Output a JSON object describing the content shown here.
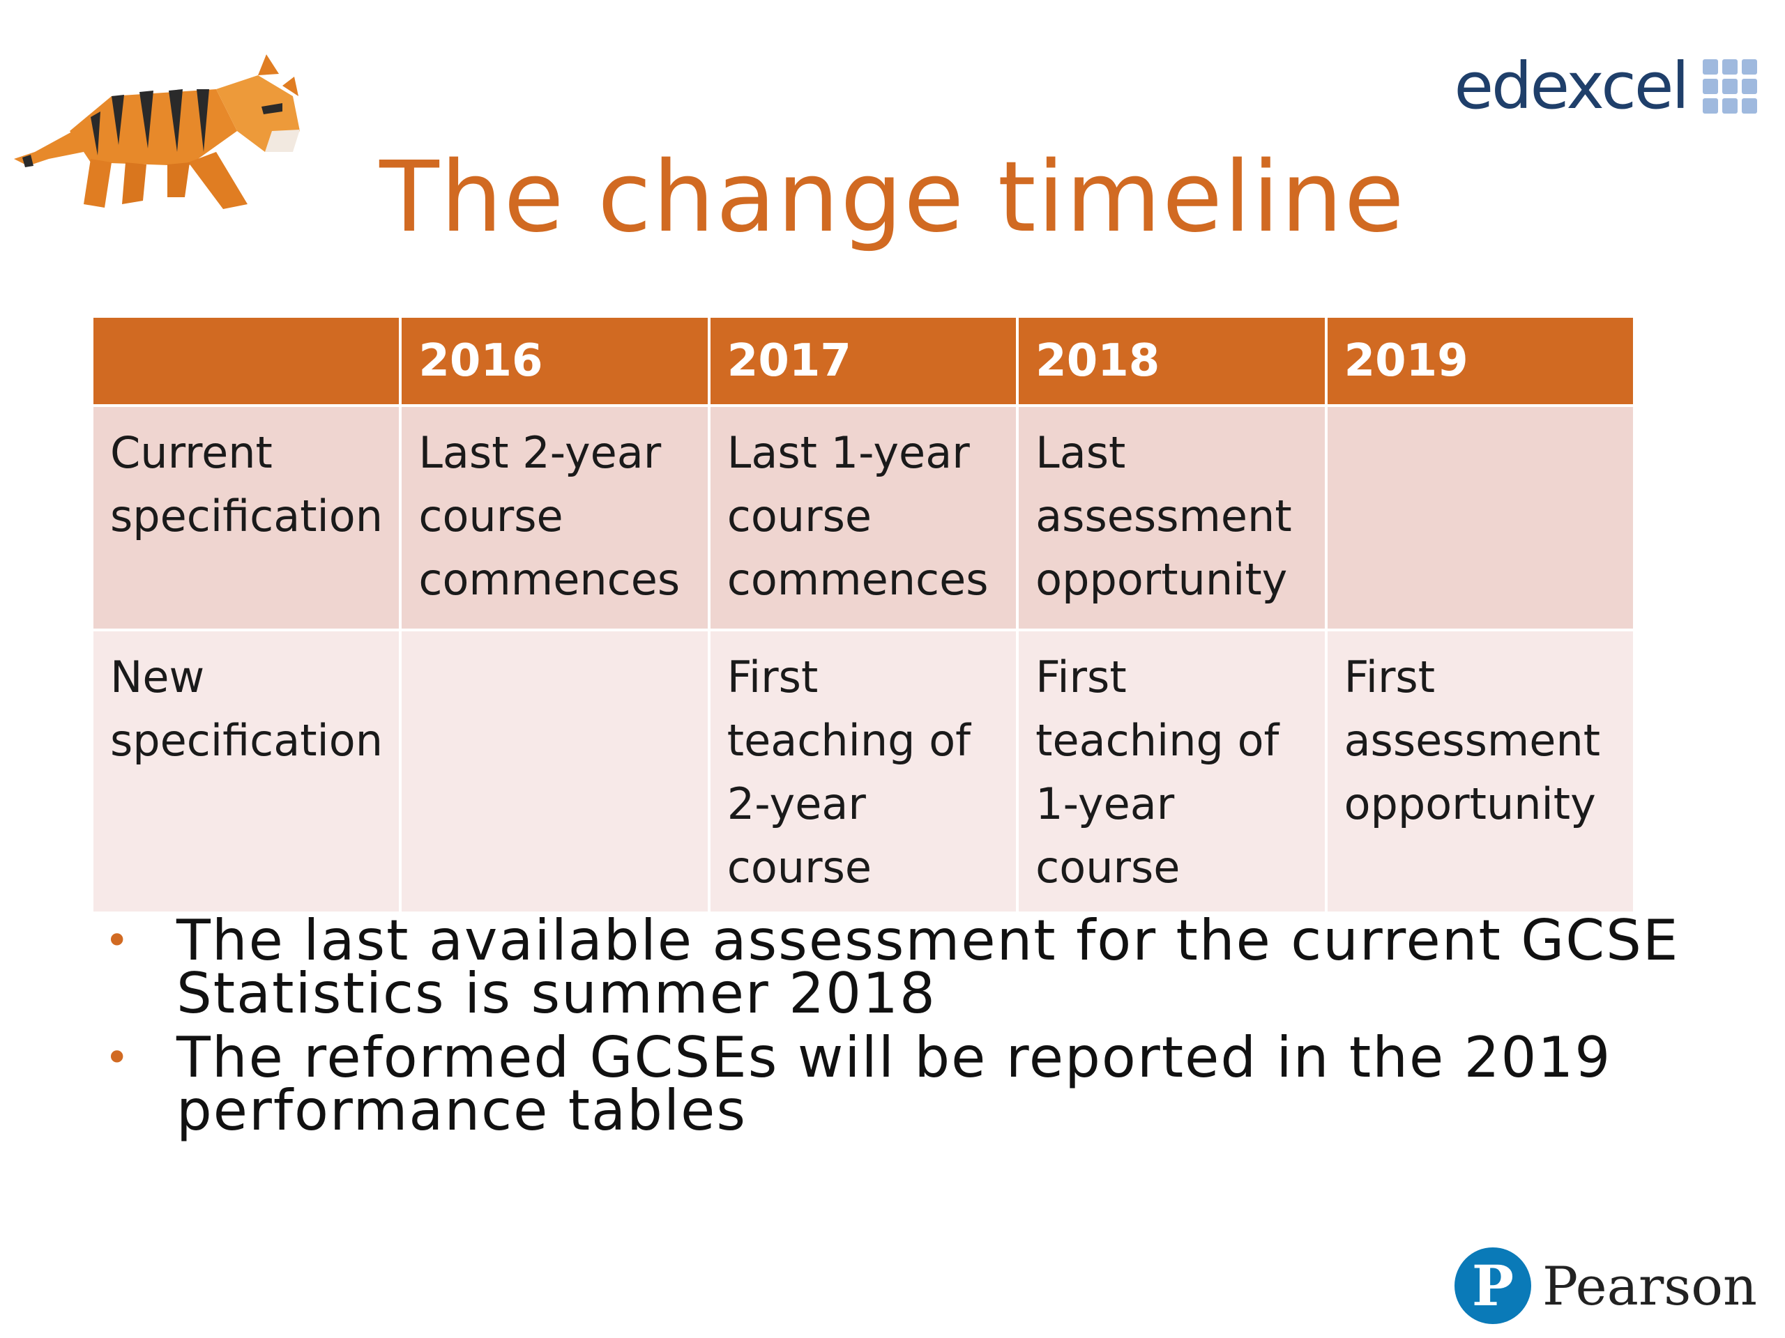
{
  "logos": {
    "edexcel": "edexcel",
    "edexcel_icon": "grid-dots-icon",
    "pearson": "Pearson",
    "pearson_mark": "P",
    "tiger_illustration": "origami-tiger-icon"
  },
  "title": "The change timeline",
  "table": {
    "headers": [
      "",
      "2016",
      "2017",
      "2018",
      "2019"
    ],
    "rows": [
      {
        "label": "Current specification",
        "cells": [
          "Last 2-year course commences",
          "Last 1-year course commences",
          "Last assessment opportunity",
          ""
        ]
      },
      {
        "label": "New specification",
        "cells": [
          "",
          "First teaching of 2-year course",
          "First teaching of 1-year course",
          "First assessment opportunity"
        ]
      }
    ]
  },
  "bullets": [
    "The last available assessment for the current GCSE Statistics is summer 2018",
    "The reformed GCSEs will be reported in the 2019 performance tables"
  ],
  "colors": {
    "accent": "#d16a22",
    "row_current": "#efd5d0",
    "row_new": "#f7e9e8",
    "edexcel_blue": "#1f3f6a",
    "pearson_blue": "#0a7ab8"
  }
}
